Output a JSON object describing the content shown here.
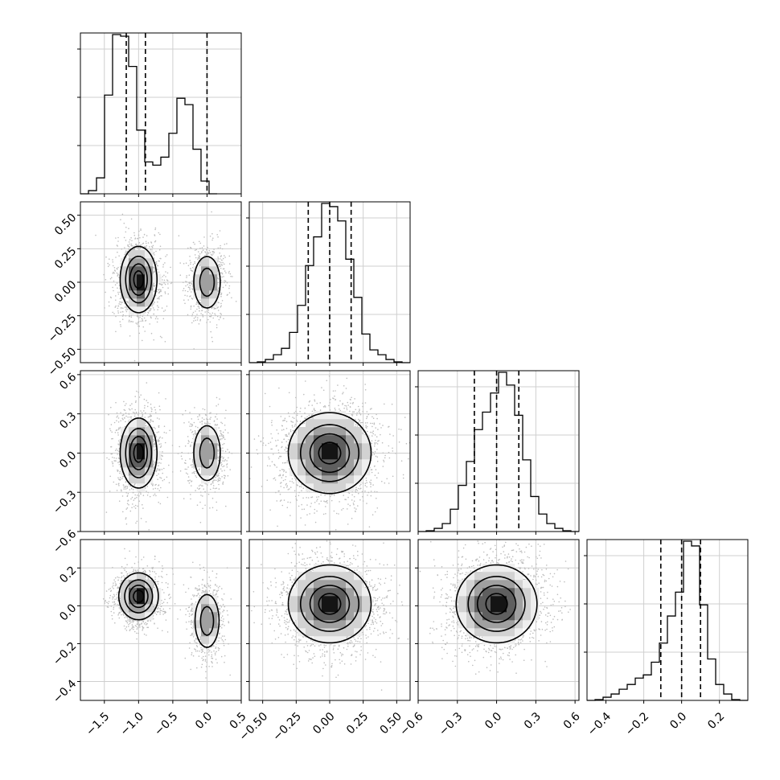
{
  "chart_data": {
    "type": "corner",
    "variables": 4,
    "quantiles": [
      0.16,
      0.5,
      0.84
    ],
    "grid": true,
    "ranges": [
      [
        -1.85,
        0.5
      ],
      [
        -0.6,
        0.6
      ],
      [
        -0.6,
        0.63
      ],
      [
        -0.5,
        0.35
      ]
    ],
    "ticks": [
      [
        -1.5,
        -1.0,
        -0.5,
        0.0,
        0.5
      ],
      [
        -0.5,
        -0.25,
        0.0,
        0.25,
        0.5
      ],
      [
        -0.6,
        -0.3,
        0.0,
        0.3,
        0.6
      ],
      [
        -0.4,
        -0.2,
        0.0,
        0.2
      ]
    ],
    "tick_labels": [
      [
        "−1.5",
        "−1.0",
        "−0.5",
        "0.0",
        "0.5"
      ],
      [
        "−0.50",
        "−0.25",
        "0.00",
        "0.25",
        "0.50"
      ],
      [
        "−0.6",
        "−0.3",
        "0.0",
        "0.3",
        "0.6"
      ],
      [
        "−0.4",
        "−0.2",
        "0.0",
        "0.2"
      ]
    ],
    "histograms": [
      {
        "edges_start": -1.85,
        "bin_width": 0.1175,
        "counts": [
          0,
          2,
          10,
          62,
          100,
          99,
          80,
          40,
          20,
          18,
          23,
          38,
          60,
          56,
          28,
          8,
          0
        ]
      },
      {
        "edges_start": -0.6,
        "bin_width": 0.06,
        "counts": [
          0,
          0.5,
          2,
          5,
          9,
          19,
          36,
          61,
          79,
          100,
          98,
          89,
          65,
          41,
          18,
          8,
          5,
          2,
          0.5,
          0
        ]
      },
      {
        "edges_start": -0.6,
        "bin_width": 0.0615,
        "counts": [
          0,
          0.5,
          2,
          5,
          14,
          29,
          44,
          64,
          75,
          87,
          100,
          92,
          73,
          45,
          22,
          11,
          5,
          2,
          0.5,
          0
        ]
      },
      {
        "edges_start": -0.5,
        "bin_width": 0.0425,
        "counts": [
          0,
          0.5,
          2,
          4,
          7,
          10,
          14,
          16,
          24,
          36,
          53,
          68,
          100,
          97,
          60,
          26,
          10,
          4,
          0.5,
          0
        ]
      }
    ],
    "quantile_values": [
      [
        -1.18,
        -0.9,
        0.0
      ],
      [
        -0.16,
        0.0,
        0.16
      ],
      [
        -0.17,
        0.0,
        0.17
      ],
      [
        -0.11,
        0.0,
        0.1
      ]
    ],
    "panels": [
      {
        "x": 0,
        "y": 1,
        "blobs": [
          {
            "cx": -1.0,
            "cy": 0.02,
            "sx": 0.13,
            "sy": 0.12,
            "w": 1.0
          },
          {
            "cx": 0.0,
            "cy": 0.0,
            "sx": 0.11,
            "sy": 0.11,
            "w": 0.55
          }
        ]
      },
      {
        "x": 0,
        "y": 2,
        "blobs": [
          {
            "cx": -1.0,
            "cy": 0.0,
            "sx": 0.13,
            "sy": 0.13,
            "w": 1.0
          },
          {
            "cx": 0.0,
            "cy": 0.0,
            "sx": 0.11,
            "sy": 0.12,
            "w": 0.55
          }
        ]
      },
      {
        "x": 0,
        "y": 3,
        "blobs": [
          {
            "cx": -1.0,
            "cy": 0.05,
            "sx": 0.14,
            "sy": 0.06,
            "w": 1.0
          },
          {
            "cx": 0.0,
            "cy": -0.08,
            "sx": 0.1,
            "sy": 0.08,
            "w": 0.55
          }
        ]
      },
      {
        "x": 1,
        "y": 2,
        "blobs": [
          {
            "cx": 0.0,
            "cy": 0.0,
            "sx": 0.15,
            "sy": 0.15,
            "w": 1.0
          }
        ]
      },
      {
        "x": 1,
        "y": 3,
        "blobs": [
          {
            "cx": 0.0,
            "cy": 0.01,
            "sx": 0.15,
            "sy": 0.1,
            "w": 1.0
          }
        ]
      },
      {
        "x": 2,
        "y": 3,
        "blobs": [
          {
            "cx": 0.0,
            "cy": 0.01,
            "sx": 0.15,
            "sy": 0.1,
            "w": 1.0
          }
        ]
      }
    ],
    "density_levels": [
      0.12,
      0.35,
      0.62,
      0.86
    ]
  }
}
